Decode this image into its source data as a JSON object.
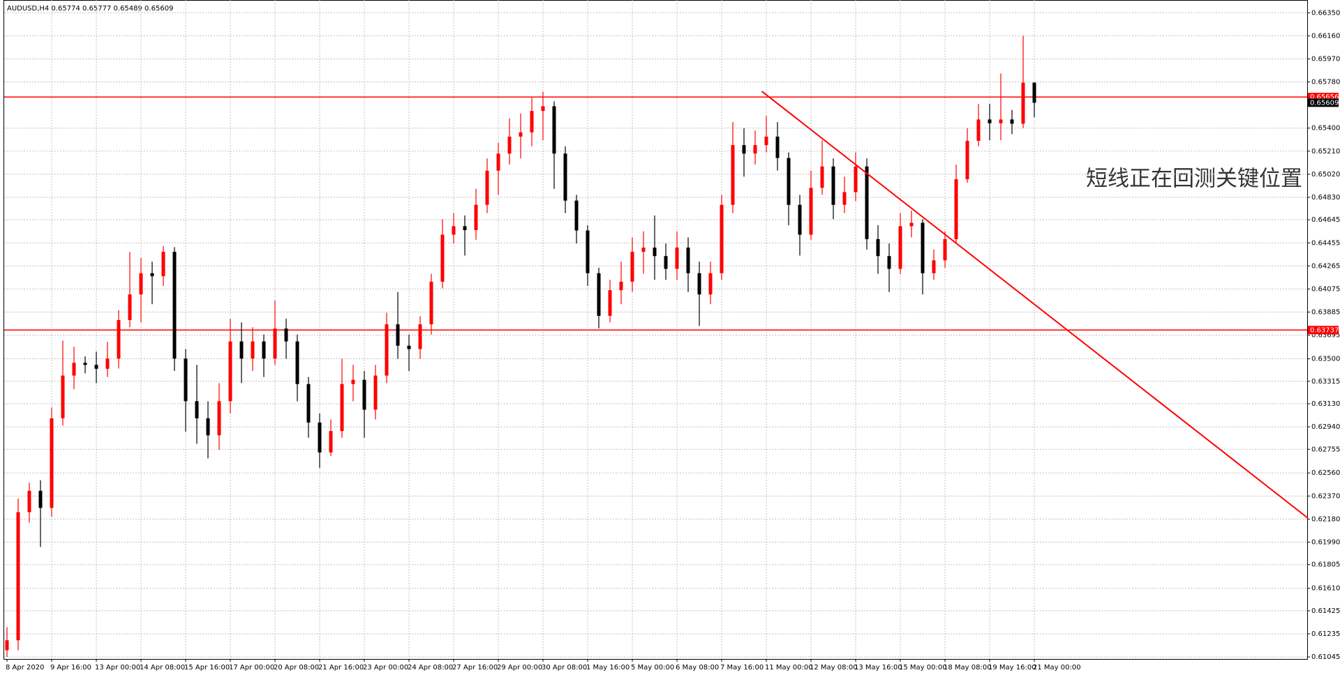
{
  "chart_data": {
    "type": "candlestick",
    "title": "AUDUSD,H4  0.65774 0.65777 0.65489 0.65609",
    "annotation": "短线正在回测关键位置",
    "up_color": "#ff0000",
    "down_color": "#000000",
    "grid": true,
    "open": [
      0.611,
      0.61182,
      0.62237,
      0.62413,
      0.62272,
      0.6301,
      0.63362,
      0.63467,
      0.6345,
      0.63418,
      0.63502,
      0.63819,
      0.6403,
      0.64205,
      0.6418,
      0.64381,
      0.63502,
      0.63151,
      0.6301,
      0.6287,
      0.63151,
      0.63643,
      0.63502,
      0.63643,
      0.63502,
      0.63749,
      0.63643,
      0.63292,
      0.62975,
      0.62729,
      0.62905,
      0.63292,
      0.63327,
      0.63081,
      0.63362,
      0.63784,
      0.63608,
      0.6358,
      0.63784,
      0.64135,
      0.64522,
      0.64592,
      0.6456,
      0.64768,
      0.65049,
      0.6519,
      0.6533,
      0.65365,
      0.65541,
      0.6558,
      0.6519,
      0.64803,
      0.64557,
      0.64205,
      0.63854,
      0.64065,
      0.64135,
      0.64381,
      0.64416,
      0.64346,
      0.64241,
      0.64416,
      0.64205,
      0.6403,
      0.64205,
      0.64768,
      0.6526,
      0.6519,
      0.6526,
      0.6533,
      0.65154,
      0.64768,
      0.64522,
      0.64908,
      0.65084,
      0.64768,
      0.64873,
      0.65084,
      0.64486,
      0.64346,
      0.64241,
      0.64592,
      0.6462,
      0.64205,
      0.64311,
      0.64486,
      0.64979,
      0.65295,
      0.65471,
      0.6544,
      0.65471,
      0.65436,
      0.65774
    ],
    "high": [
      0.6129,
      0.6235,
      0.6248,
      0.625,
      0.631,
      0.6365,
      0.636,
      0.6352,
      0.6356,
      0.6364,
      0.639,
      0.6438,
      0.6433,
      0.643,
      0.6443,
      0.6442,
      0.6358,
      0.6345,
      0.6315,
      0.633,
      0.6383,
      0.638,
      0.6376,
      0.637,
      0.6398,
      0.6383,
      0.637,
      0.6335,
      0.6305,
      0.63,
      0.635,
      0.6345,
      0.634,
      0.6345,
      0.6388,
      0.6405,
      0.637,
      0.6385,
      0.642,
      0.6465,
      0.647,
      0.6468,
      0.649,
      0.6515,
      0.6528,
      0.6548,
      0.6552,
      0.6565,
      0.657,
      0.6562,
      0.6525,
      0.6485,
      0.646,
      0.6425,
      0.6415,
      0.643,
      0.645,
      0.6455,
      0.6468,
      0.6445,
      0.6455,
      0.645,
      0.643,
      0.643,
      0.6485,
      0.6545,
      0.654,
      0.6538,
      0.655,
      0.6545,
      0.652,
      0.6485,
      0.6505,
      0.653,
      0.6515,
      0.65,
      0.652,
      0.6515,
      0.646,
      0.6445,
      0.647,
      0.6472,
      0.6465,
      0.644,
      0.6455,
      0.651,
      0.654,
      0.656,
      0.656,
      0.6585,
      0.6555,
      0.6616,
      0.65777
    ],
    "low": [
      0.61045,
      0.611,
      0.6215,
      0.6195,
      0.622,
      0.6295,
      0.6325,
      0.6338,
      0.633,
      0.6335,
      0.6342,
      0.6376,
      0.638,
      0.6395,
      0.641,
      0.634,
      0.629,
      0.628,
      0.6268,
      0.6275,
      0.6305,
      0.633,
      0.634,
      0.6335,
      0.6345,
      0.635,
      0.6315,
      0.6285,
      0.626,
      0.627,
      0.6285,
      0.6315,
      0.6285,
      0.63,
      0.633,
      0.635,
      0.634,
      0.635,
      0.637,
      0.6408,
      0.6445,
      0.6435,
      0.6448,
      0.647,
      0.6485,
      0.651,
      0.6515,
      0.6525,
      0.653,
      0.649,
      0.647,
      0.6445,
      0.641,
      0.6375,
      0.638,
      0.6395,
      0.6405,
      0.642,
      0.6415,
      0.6415,
      0.6415,
      0.6405,
      0.6377,
      0.6395,
      0.6415,
      0.647,
      0.65,
      0.651,
      0.652,
      0.6505,
      0.646,
      0.6435,
      0.6448,
      0.6485,
      0.6465,
      0.647,
      0.648,
      0.644,
      0.642,
      0.6405,
      0.642,
      0.645,
      0.6403,
      0.6415,
      0.6425,
      0.6445,
      0.6495,
      0.6525,
      0.653,
      0.653,
      0.6535,
      0.654,
      0.65489
    ],
    "close": [
      0.61182,
      0.62237,
      0.62413,
      0.62272,
      0.6301,
      0.63362,
      0.63467,
      0.6345,
      0.63418,
      0.63502,
      0.63819,
      0.6403,
      0.64205,
      0.6418,
      0.64381,
      0.63502,
      0.63151,
      0.6301,
      0.6287,
      0.63151,
      0.63643,
      0.63502,
      0.63643,
      0.63502,
      0.63749,
      0.63643,
      0.63292,
      0.62975,
      0.62729,
      0.62905,
      0.63292,
      0.63327,
      0.63081,
      0.63362,
      0.63784,
      0.63608,
      0.6358,
      0.63784,
      0.64135,
      0.64522,
      0.64592,
      0.6456,
      0.64768,
      0.65049,
      0.6519,
      0.6533,
      0.65365,
      0.65541,
      0.6558,
      0.6519,
      0.64803,
      0.64557,
      0.64205,
      0.63854,
      0.64065,
      0.64135,
      0.64381,
      0.64416,
      0.64346,
      0.64241,
      0.64416,
      0.64205,
      0.6403,
      0.64205,
      0.64768,
      0.6526,
      0.6519,
      0.6526,
      0.6533,
      0.65154,
      0.64768,
      0.64522,
      0.64908,
      0.65084,
      0.64768,
      0.64873,
      0.65084,
      0.64486,
      0.64346,
      0.64241,
      0.64592,
      0.6462,
      0.64205,
      0.64311,
      0.64486,
      0.64979,
      0.65295,
      0.65471,
      0.6544,
      0.65471,
      0.65436,
      0.65774,
      0.65609
    ],
    "xticks": [
      {
        "value": 0,
        "label": "8 Apr 2020"
      },
      {
        "value": 4,
        "label": "9 Apr 16:00"
      },
      {
        "value": 8,
        "label": "13 Apr 00:00"
      },
      {
        "value": 12,
        "label": "14 Apr 08:00"
      },
      {
        "value": 16,
        "label": "15 Apr 16:00"
      },
      {
        "value": 20,
        "label": "17 Apr 00:00"
      },
      {
        "value": 24,
        "label": "20 Apr 08:00"
      },
      {
        "value": 28,
        "label": "21 Apr 16:00"
      },
      {
        "value": 32,
        "label": "23 Apr 00:00"
      },
      {
        "value": 36,
        "label": "24 Apr 08:00"
      },
      {
        "value": 40,
        "label": "27 Apr 16:00"
      },
      {
        "value": 44,
        "label": "29 Apr 00:00"
      },
      {
        "value": 48,
        "label": "30 Apr 08:00"
      },
      {
        "value": 52,
        "label": "1 May 16:00"
      },
      {
        "value": 56,
        "label": "5 May 00:00"
      },
      {
        "value": 60,
        "label": "6 May 08:00"
      },
      {
        "value": 64,
        "label": "7 May 16:00"
      },
      {
        "value": 68,
        "label": "11 May 00:00"
      },
      {
        "value": 72,
        "label": "12 May 08:00"
      },
      {
        "value": 76,
        "label": "13 May 16:00"
      },
      {
        "value": 80,
        "label": "15 May 00:00"
      },
      {
        "value": 84,
        "label": "18 May 08:00"
      },
      {
        "value": 88,
        "label": "19 May 16:00"
      },
      {
        "value": 92,
        "label": "21 May 00:00"
      }
    ],
    "ylim": [
      0.61028,
      0.66455
    ],
    "yticks": [
      {
        "value": 0.6635,
        "label": "0.66350"
      },
      {
        "value": 0.6616,
        "label": "0.66160"
      },
      {
        "value": 0.6597,
        "label": "0.65970"
      },
      {
        "value": 0.6578,
        "label": "0.65780"
      },
      {
        "value": 0.654,
        "label": "0.65400"
      },
      {
        "value": 0.6521,
        "label": "0.65210"
      },
      {
        "value": 0.6502,
        "label": "0.65020"
      },
      {
        "value": 0.6483,
        "label": "0.64830"
      },
      {
        "value": 0.64645,
        "label": "0.64645"
      },
      {
        "value": 0.64455,
        "label": "0.64455"
      },
      {
        "value": 0.64265,
        "label": "0.64265"
      },
      {
        "value": 0.64075,
        "label": "0.64075"
      },
      {
        "value": 0.63885,
        "label": "0.63885"
      },
      {
        "value": 0.63695,
        "label": "0.63695"
      },
      {
        "value": 0.635,
        "label": "0.63500"
      },
      {
        "value": 0.63315,
        "label": "0.63315"
      },
      {
        "value": 0.6313,
        "label": "0.63130"
      },
      {
        "value": 0.6294,
        "label": "0.62940"
      },
      {
        "value": 0.62755,
        "label": "0.62755"
      },
      {
        "value": 0.6256,
        "label": "0.62560"
      },
      {
        "value": 0.6237,
        "label": "0.62370"
      },
      {
        "value": 0.6218,
        "label": "0.62180"
      },
      {
        "value": 0.6199,
        "label": "0.61990"
      },
      {
        "value": 0.61805,
        "label": "0.61805"
      },
      {
        "value": 0.6161,
        "label": "0.61610"
      },
      {
        "value": 0.61425,
        "label": "0.61425"
      },
      {
        "value": 0.61235,
        "label": "0.61235"
      },
      {
        "value": 0.61045,
        "label": "0.61045"
      }
    ],
    "hlines": [
      {
        "value": 0.65656,
        "label": "0.65656"
      },
      {
        "value": 0.63737,
        "label": "0.63737"
      }
    ],
    "hline_color": "#ff0000",
    "current_price": {
      "value": 0.65609,
      "label": "0.65609"
    },
    "trendline": {
      "x": [
        67.6,
        116.5
      ],
      "y": [
        0.65703,
        0.62188
      ]
    }
  }
}
